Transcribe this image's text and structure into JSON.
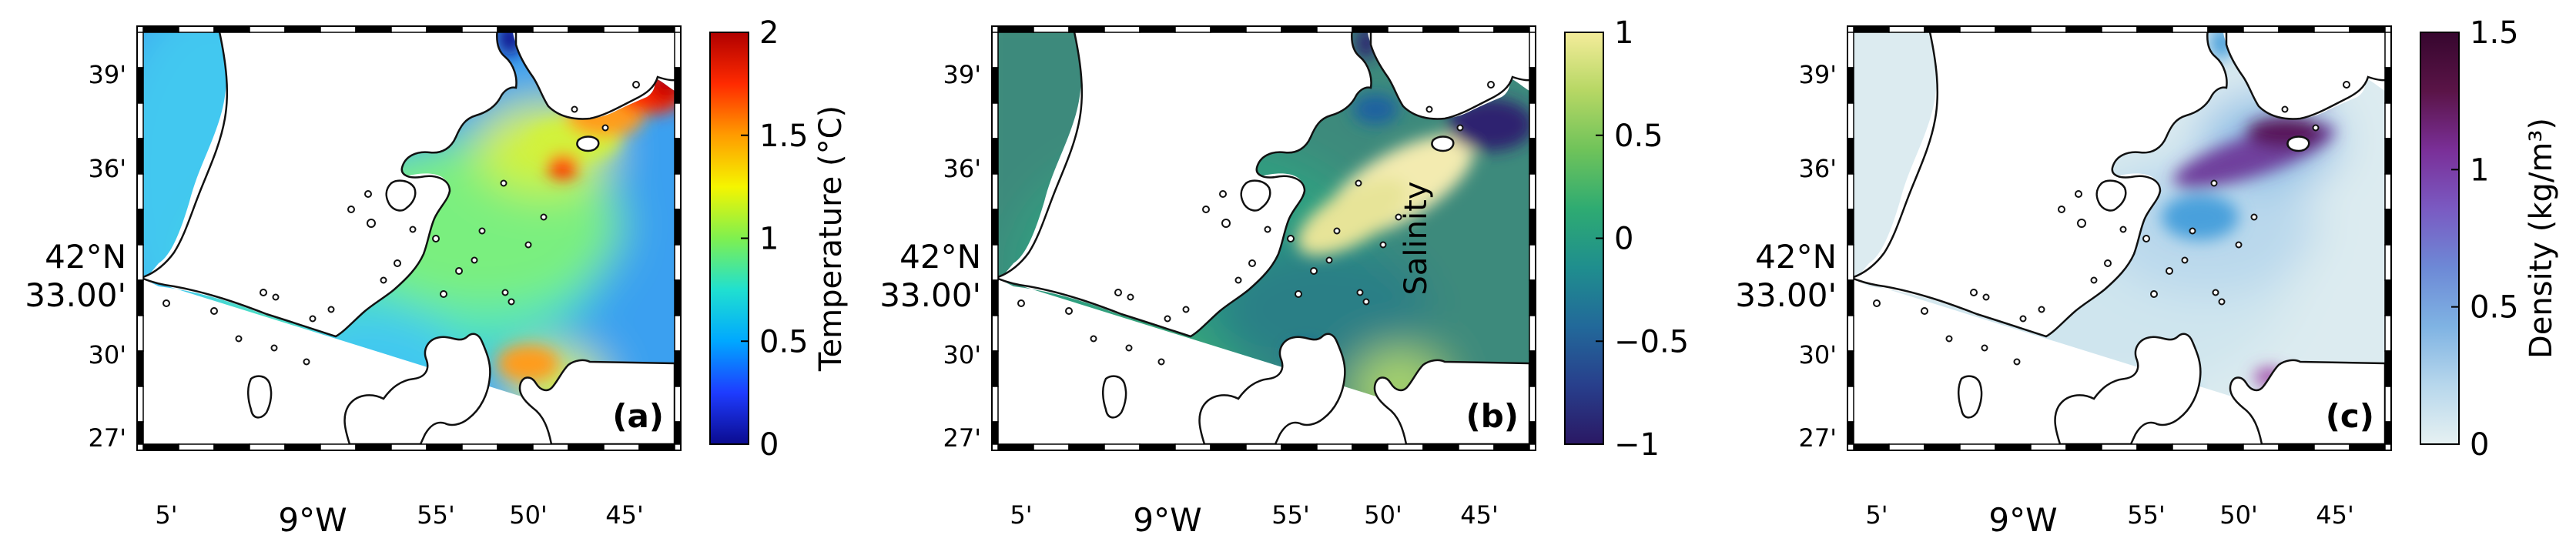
{
  "panels": [
    {
      "letter": "(a)",
      "colorbar": {
        "label": "Temperature (°C)",
        "ticks": [
          "2",
          "1.5",
          "1",
          "0.5",
          "0"
        ],
        "range": [
          0,
          2
        ],
        "colormap": "jet",
        "stops": [
          "#0b0b8f",
          "#1e3cff",
          "#00a8ff",
          "#20e0d0",
          "#7ff04f",
          "#f5f500",
          "#ff9c00",
          "#ff2a00",
          "#b00000"
        ]
      }
    },
    {
      "letter": "(b)",
      "colorbar": {
        "label": "Salinity",
        "ticks": [
          "1",
          "0.5",
          "0",
          "−0.5",
          "−1"
        ],
        "range": [
          -1,
          1
        ],
        "colormap": "haline",
        "stops": [
          "#2a1864",
          "#283f8c",
          "#22699a",
          "#1f8e8e",
          "#2eab72",
          "#6fc35a",
          "#b6d764",
          "#f4ec9a"
        ]
      }
    },
    {
      "letter": "(c)",
      "colorbar": {
        "label": "Density (kg/m³)",
        "ticks": [
          "1.5",
          "1",
          "0.5",
          "0"
        ],
        "range": [
          0,
          1.5
        ],
        "colormap": "dense",
        "stops": [
          "#e6f1f2",
          "#b7d7ec",
          "#7fb3e3",
          "#6d89d6",
          "#7a5ac2",
          "#7a2f98",
          "#5a1447",
          "#36062e"
        ]
      }
    }
  ],
  "axes": {
    "lat_labels": [
      "39'",
      "36'",
      "42°N 33.00'",
      "30'",
      "27'"
    ],
    "lon_labels": [
      "5'",
      "9°W",
      "55'",
      "50'",
      "45'"
    ]
  },
  "colors": {
    "land": "#ffffff",
    "coast": "#111111",
    "frame": "#000000",
    "field_a": [
      "#3aa0f0",
      "#42c8f0",
      "#4ee2c0",
      "#7aef7f",
      "#9aef5a",
      "#d2f23a",
      "#ff9c1a",
      "#ff2a00",
      "#c80000",
      "#10108a"
    ],
    "field_b": [
      "#3e8a7b",
      "#2f9f80",
      "#41ad70",
      "#2c7f86",
      "#f3ebb0",
      "#e7e498",
      "#2f2470",
      "#1f62a0",
      "#a7d36c"
    ],
    "field_c": [
      "#dcebf0",
      "#cfe5ee",
      "#b9d8ec",
      "#8fbfe6",
      "#6f3f9d",
      "#58155a",
      "#4aa0dc",
      "#3aa0ea",
      "#a04aa8"
    ]
  }
}
